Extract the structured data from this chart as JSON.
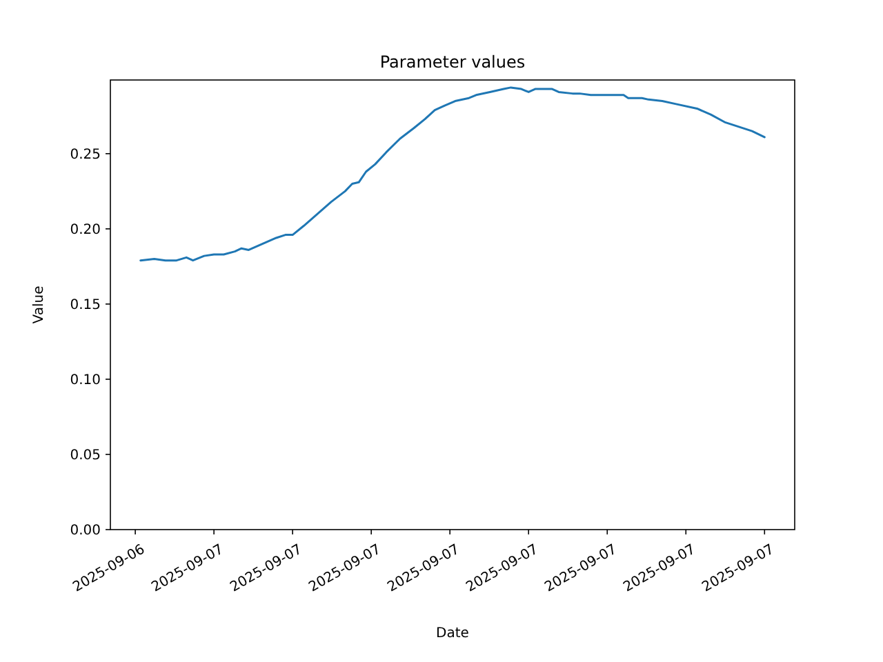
{
  "chart_data": {
    "type": "line",
    "title": "Parameter values",
    "xlabel": "Date",
    "ylabel": "Value",
    "color": "#1f77b4",
    "x": [
      "2025-09-06T22:08",
      "2025-09-06T22:29",
      "2025-09-06T22:46",
      "2025-09-06T23:03",
      "2025-09-06T23:18",
      "2025-09-06T23:28",
      "2025-09-06T23:45",
      "2025-09-07T00:00",
      "2025-09-07T00:15",
      "2025-09-07T00:32",
      "2025-09-07T00:42",
      "2025-09-07T00:53",
      "2025-09-07T01:14",
      "2025-09-07T01:35",
      "2025-09-07T01:49",
      "2025-09-07T02:00",
      "2025-09-07T02:17",
      "2025-09-07T02:38",
      "2025-09-07T02:59",
      "2025-09-07T03:20",
      "2025-09-07T03:31",
      "2025-09-07T03:41",
      "2025-09-07T03:52",
      "2025-09-07T04:06",
      "2025-09-07T04:23",
      "2025-09-07T04:44",
      "2025-09-07T05:05",
      "2025-09-07T05:22",
      "2025-09-07T05:37",
      "2025-09-07T05:52",
      "2025-09-07T06:08",
      "2025-09-07T06:29",
      "2025-09-07T06:40",
      "2025-09-07T07:01",
      "2025-09-07T07:22",
      "2025-09-07T07:33",
      "2025-09-07T07:49",
      "2025-09-07T08:00",
      "2025-09-07T08:10",
      "2025-09-07T08:36",
      "2025-09-07T08:46",
      "2025-09-07T09:07",
      "2025-09-07T09:18",
      "2025-09-07T09:35",
      "2025-09-07T09:49",
      "2025-09-07T10:10",
      "2025-09-07T10:25",
      "2025-09-07T10:32",
      "2025-09-07T10:53",
      "2025-09-07T11:03",
      "2025-09-07T11:24",
      "2025-09-07T11:45",
      "2025-09-07T12:17",
      "2025-09-07T12:38",
      "2025-09-07T12:59",
      "2025-09-07T13:20",
      "2025-09-07T13:41",
      "2025-09-07T14:00"
    ],
    "values": [
      0.179,
      0.18,
      0.179,
      0.179,
      0.181,
      0.179,
      0.182,
      0.183,
      0.183,
      0.185,
      0.187,
      0.186,
      0.19,
      0.194,
      0.196,
      0.196,
      0.202,
      0.21,
      0.218,
      0.225,
      0.23,
      0.231,
      0.238,
      0.243,
      0.251,
      0.26,
      0.267,
      0.273,
      0.279,
      0.282,
      0.285,
      0.287,
      0.289,
      0.291,
      0.293,
      0.294,
      0.293,
      0.291,
      0.293,
      0.293,
      0.291,
      0.29,
      0.29,
      0.289,
      0.289,
      0.289,
      0.289,
      0.287,
      0.287,
      0.286,
      0.285,
      0.283,
      0.28,
      0.276,
      0.271,
      0.268,
      0.265,
      0.261
    ],
    "xlim": [
      "2025-09-06T21:22",
      "2025-09-07T14:46"
    ],
    "xticks": [
      {
        "value": "2025-09-06T22:00",
        "label": "2025-09-06"
      },
      {
        "value": "2025-09-07T00:00",
        "label": "2025-09-07"
      },
      {
        "value": "2025-09-07T02:00",
        "label": "2025-09-07"
      },
      {
        "value": "2025-09-07T04:00",
        "label": "2025-09-07"
      },
      {
        "value": "2025-09-07T06:00",
        "label": "2025-09-07"
      },
      {
        "value": "2025-09-07T08:00",
        "label": "2025-09-07"
      },
      {
        "value": "2025-09-07T10:00",
        "label": "2025-09-07"
      },
      {
        "value": "2025-09-07T12:00",
        "label": "2025-09-07"
      },
      {
        "value": "2025-09-07T14:00",
        "label": "2025-09-07"
      }
    ],
    "ylim": [
      0,
      0.299
    ],
    "yticks": [
      {
        "value": 0,
        "label": "0.00"
      },
      {
        "value": 0.05,
        "label": "0.05"
      },
      {
        "value": 0.1,
        "label": "0.10"
      },
      {
        "value": 0.15,
        "label": "0.15"
      },
      {
        "value": 0.2,
        "label": "0.20"
      },
      {
        "value": 0.25,
        "label": "0.25"
      }
    ],
    "grid": false,
    "marker": "none",
    "line_style": "solid"
  }
}
